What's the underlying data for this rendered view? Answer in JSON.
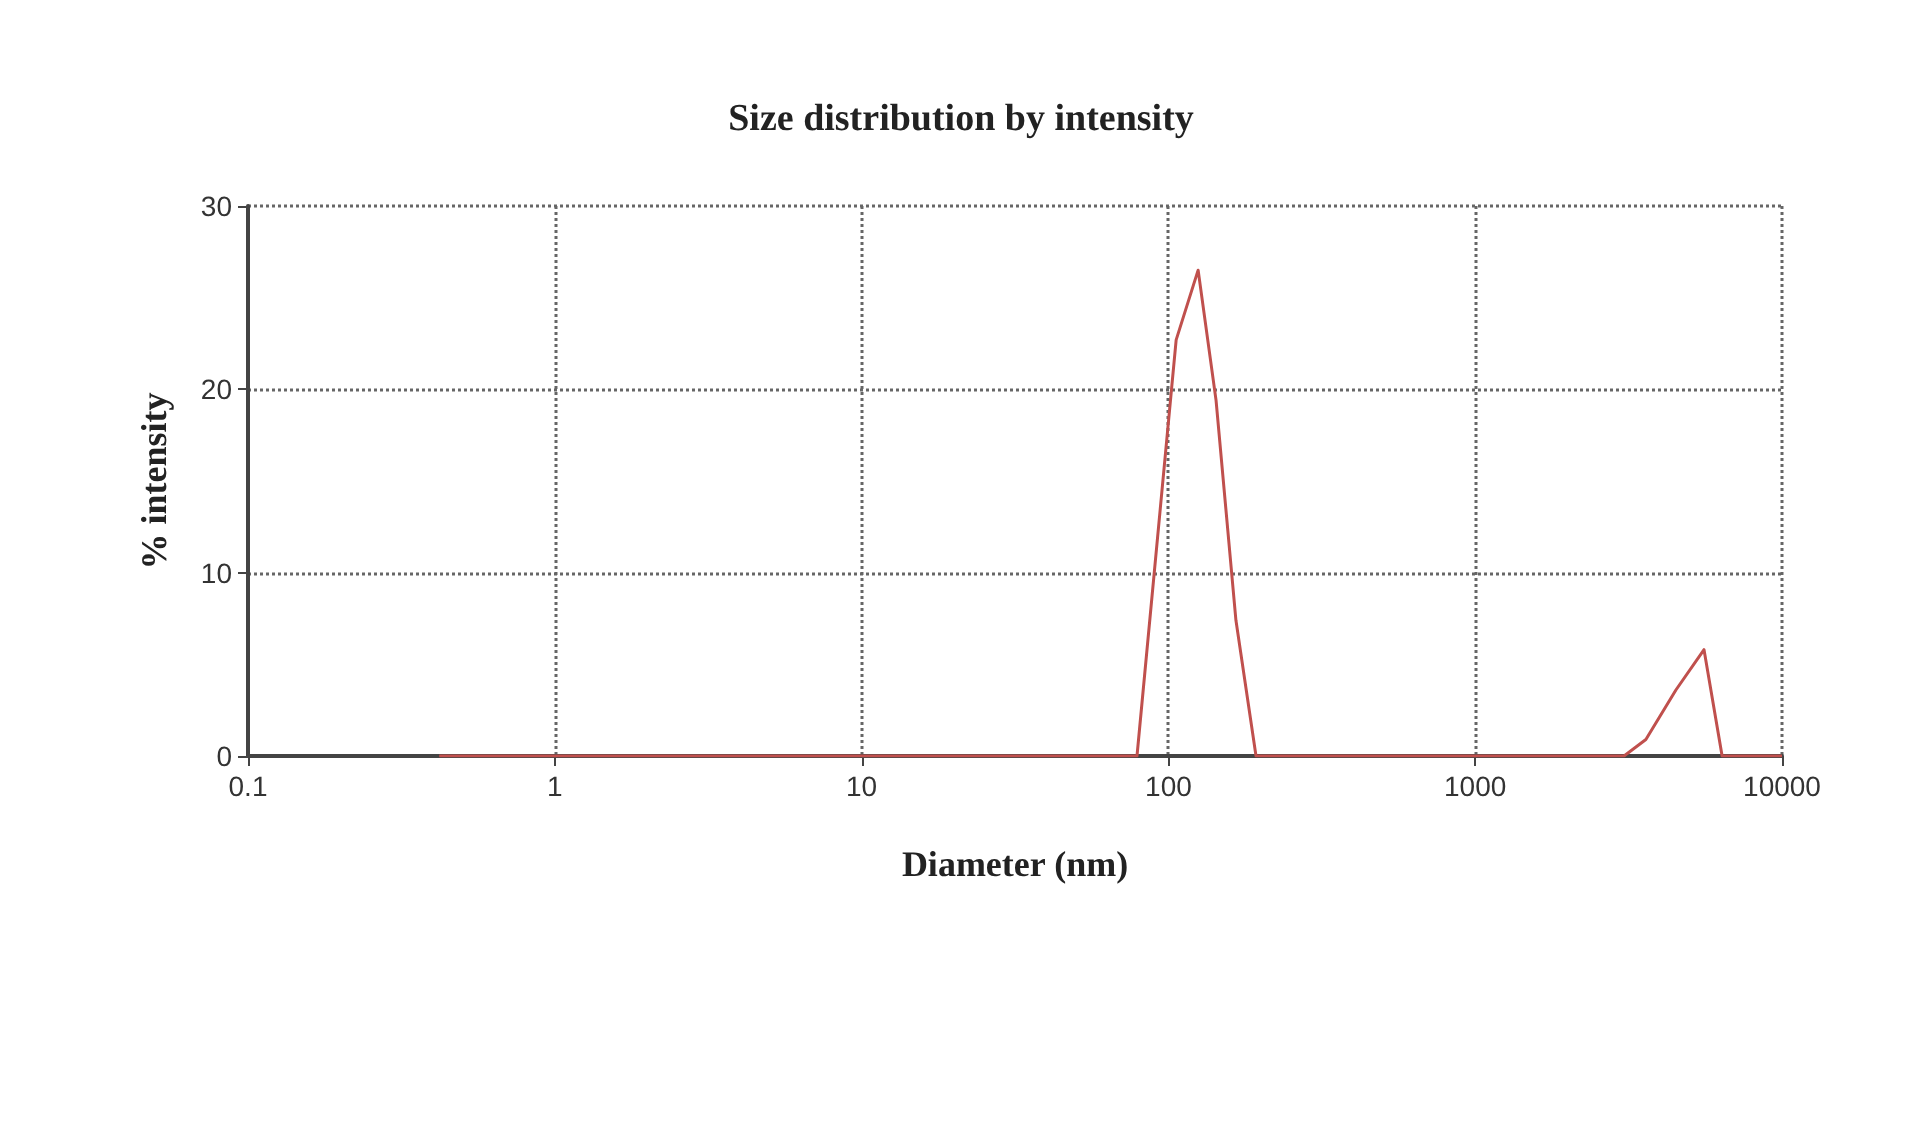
{
  "chart_data": {
    "type": "line",
    "title": "Size distribution by intensity",
    "xlabel": "Diameter (nm)",
    "ylabel": "% intensity",
    "log": "x",
    "xlim": [
      0.1,
      10000
    ],
    "xticks": [
      0.1,
      1,
      10,
      100,
      1000,
      10000
    ],
    "ylim": [
      0,
      30
    ],
    "yticks": [
      0,
      10,
      20,
      30
    ],
    "grid": true,
    "marker": "none",
    "line_style": "solid",
    "series": [
      {
        "color": "#c0504d",
        "x": [
          0.42,
          1,
          10,
          79,
          106,
          125,
          143,
          166,
          193,
          1000,
          3055,
          3600,
          4510,
          5570,
          6380,
          10000
        ],
        "values": [
          0,
          0,
          0,
          0,
          22.7,
          26.5,
          19.4,
          7.4,
          0,
          0,
          0,
          0.9,
          3.6,
          5.8,
          0,
          0
        ]
      }
    ]
  }
}
